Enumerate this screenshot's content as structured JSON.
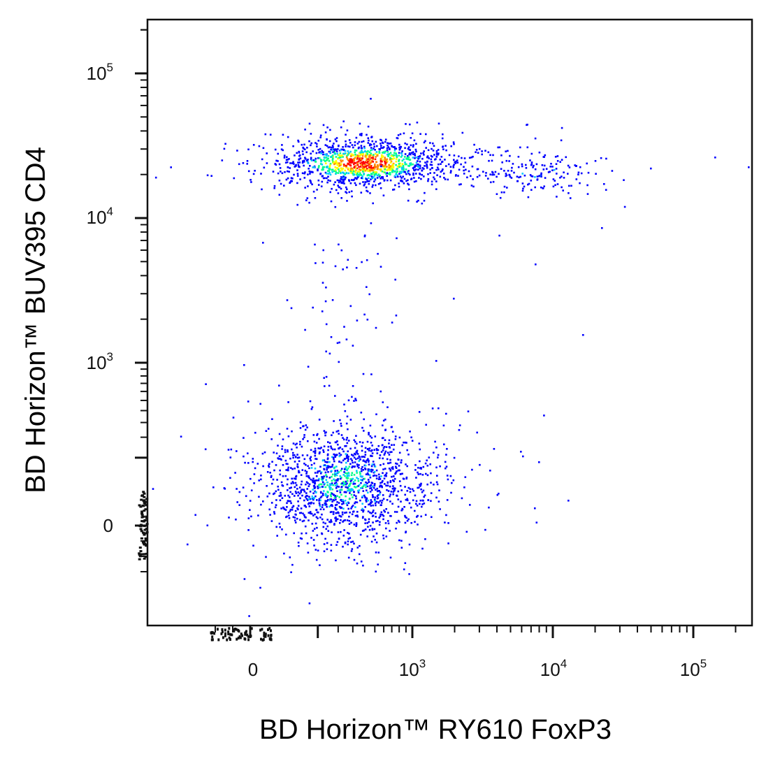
{
  "chart_data": {
    "type": "scatter",
    "subtype": "flow-cytometry-density-dot-plot",
    "xlabel": "BD Horizon™ RY610 FoxP3",
    "ylabel": "BD Horizon™ BUV395  CD4",
    "x_scale": "biexponential",
    "y_scale": "biexponential",
    "x_ticks": [
      {
        "base": "0",
        "exp": ""
      },
      {
        "base": "10",
        "exp": "3"
      },
      {
        "base": "10",
        "exp": "4"
      },
      {
        "base": "10",
        "exp": "5"
      }
    ],
    "y_ticks": [
      {
        "base": "0",
        "exp": ""
      },
      {
        "base": "10",
        "exp": "3"
      },
      {
        "base": "10",
        "exp": "4"
      },
      {
        "base": "10",
        "exp": "5"
      }
    ],
    "xlim": [
      -300,
      250000
    ],
    "ylim": [
      -300,
      250000
    ],
    "grid": false,
    "legend": "none",
    "color_scale": [
      "#0000ff",
      "#00c8ff",
      "#00ff88",
      "#ffff00",
      "#ff8800",
      "#ff0000"
    ],
    "populations": [
      {
        "name_hidden": true,
        "center": {
          "x": 400,
          "y": 24000
        },
        "spread": {
          "x": 1.8,
          "y": 1.25
        },
        "count": 1300,
        "peak_density": "red"
      },
      {
        "center": {
          "x": 8000,
          "y": 20000
        },
        "spread": {
          "x": 2.5,
          "y": 1.3
        },
        "count": 170,
        "peak_density": "cyan"
      },
      {
        "center": {
          "x": 380,
          "y": 180
        },
        "spread": {
          "x": 2.2,
          "y": 1.8
        },
        "count": 1500,
        "peak_density": "green"
      },
      {
        "center": {
          "x": 450,
          "y": 3500
        },
        "spread": {
          "x": 1.5,
          "y": 2.5
        },
        "count": 60,
        "peak_density": "blue"
      }
    ]
  }
}
